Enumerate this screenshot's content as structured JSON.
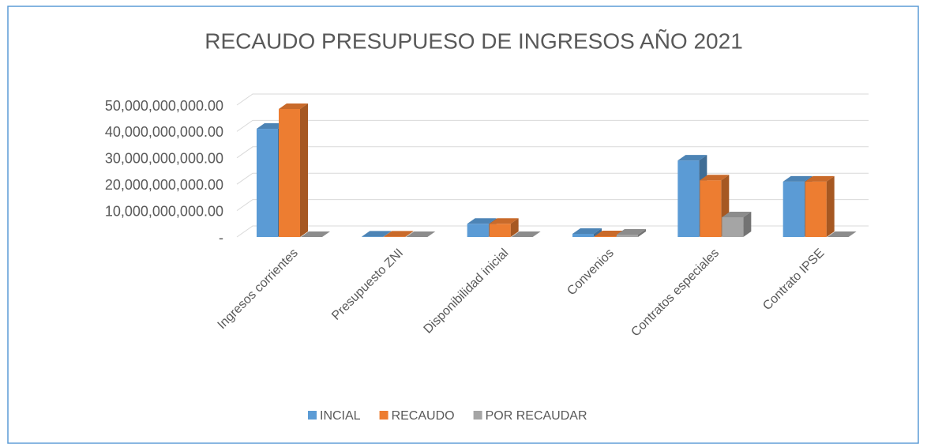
{
  "chart_data": {
    "type": "bar3d",
    "title": "RECAUDO PRESUPUESO DE INGRESOS AÑO 2021",
    "categories": [
      "Ingresos corrientes",
      "Presupuesto ZNI",
      "Disponibilidad inicial",
      "Convenios",
      "Contratos especiales",
      "Contrato IPSE"
    ],
    "series": [
      {
        "name": "INCIAL",
        "color": "#5b9bd5",
        "values": [
          41000000000,
          200000000,
          5000000000,
          1200000000,
          29000000000,
          21000000000
        ]
      },
      {
        "name": "RECAUDO",
        "color": "#ed7d31",
        "values": [
          48500000000,
          200000000,
          5000000000,
          300000000,
          21500000000,
          21000000000
        ]
      },
      {
        "name": "POR RECAUDAR",
        "color": "#a5a5a5",
        "values": [
          0,
          0,
          0,
          900000000,
          7500000000,
          0
        ]
      }
    ],
    "ylim": [
      0,
      50000000000
    ],
    "yticks": [
      {
        "value": 0,
        "label": "-"
      },
      {
        "value": 10000000000,
        "label": "10,000,000,000.00"
      },
      {
        "value": 20000000000,
        "label": "20,000,000,000.00"
      },
      {
        "value": 30000000000,
        "label": "30,000,000,000.00"
      },
      {
        "value": 40000000000,
        "label": "40,000,000,000.00"
      },
      {
        "value": 50000000000,
        "label": "50,000,000,000.00"
      }
    ],
    "grid": true,
    "legend": "bottom"
  }
}
